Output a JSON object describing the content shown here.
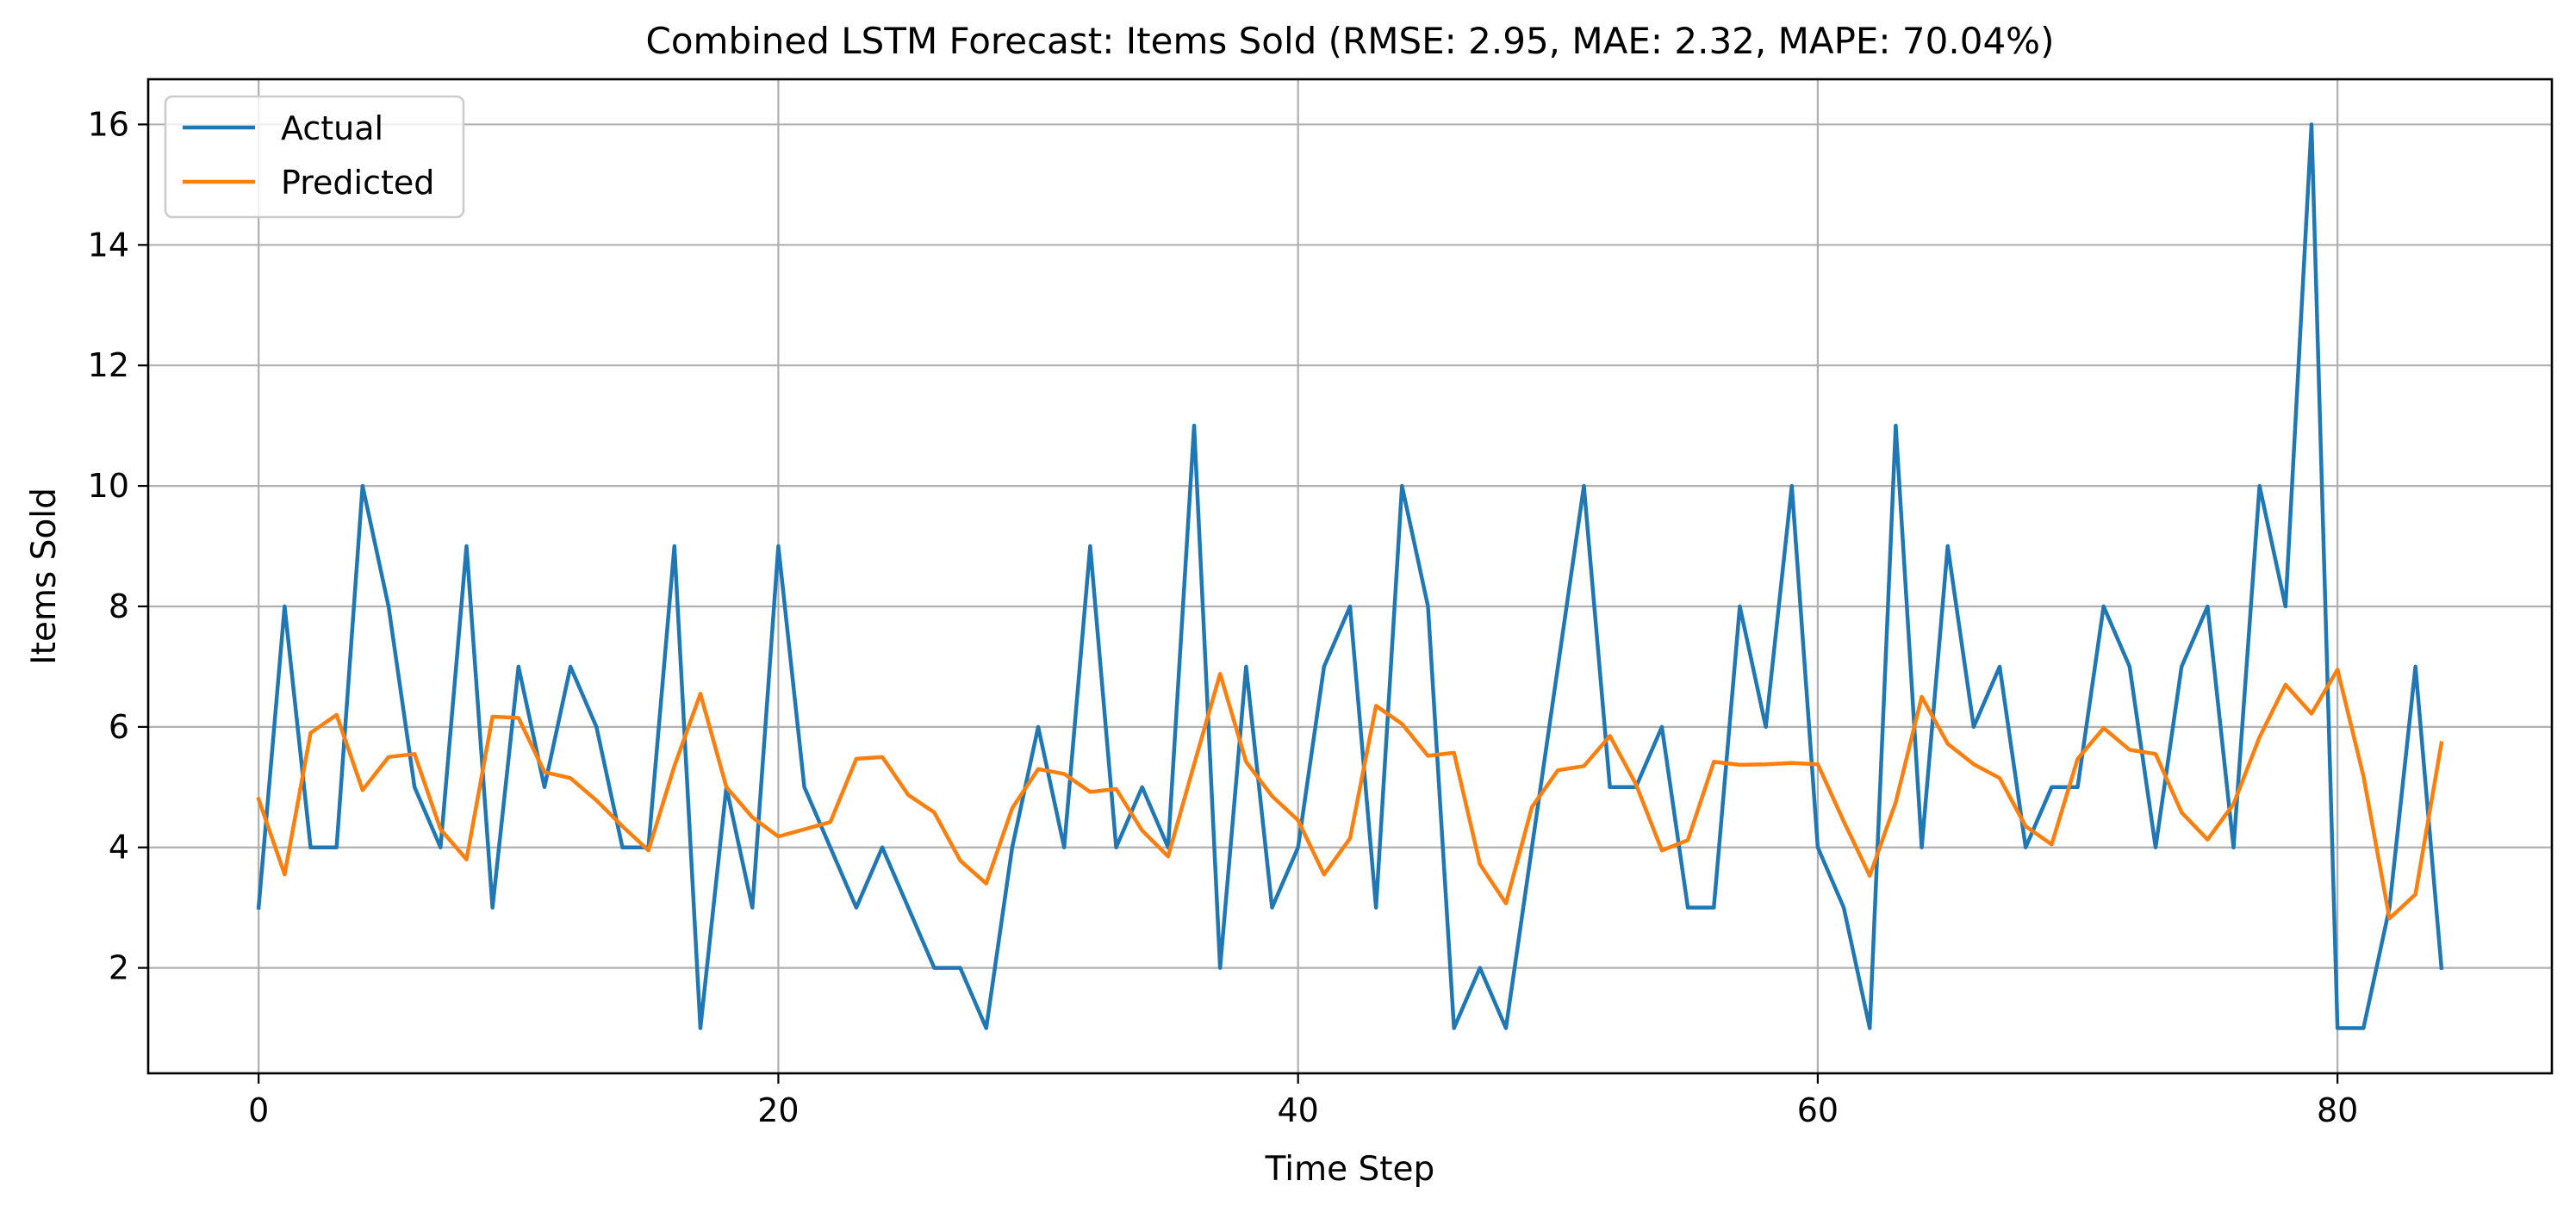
{
  "chart_data": {
    "type": "line",
    "title": "Combined LSTM Forecast: Items Sold (RMSE: 2.95, MAE: 2.32, MAPE: 70.04%)",
    "xlabel": "Time Step",
    "ylabel": "Items Sold",
    "xlim": [
      -4.25,
      88.25
    ],
    "ylim": [
      0.25,
      16.75
    ],
    "x_ticks": [
      0,
      20,
      40,
      60,
      80
    ],
    "y_ticks": [
      2,
      4,
      6,
      8,
      10,
      12,
      14,
      16
    ],
    "grid": true,
    "legend": "top-left",
    "series": [
      {
        "name": "Actual",
        "color": "#1f77b4",
        "values": [
          3,
          8,
          4,
          4,
          10,
          8,
          5,
          4,
          9,
          3,
          7,
          5,
          7,
          6,
          4,
          4,
          9,
          1,
          5,
          3,
          9,
          5,
          4,
          3,
          4,
          3,
          2,
          2,
          1,
          4,
          6,
          4,
          9,
          4,
          5,
          4,
          11,
          2,
          7,
          3,
          4,
          7,
          8,
          3,
          10,
          8,
          1,
          2,
          1,
          4,
          7,
          10,
          5,
          5,
          6,
          3,
          3,
          8,
          6,
          10,
          4,
          3,
          1,
          11,
          4,
          9,
          6,
          7,
          4,
          5,
          5,
          8,
          7,
          4,
          7,
          8,
          4,
          10,
          8,
          16,
          1,
          1,
          3,
          7,
          2
        ]
      },
      {
        "name": "Predicted",
        "color": "#ff7f0e",
        "values": [
          4.8,
          3.55,
          5.9,
          6.2,
          4.95,
          5.5,
          5.55,
          4.3,
          3.8,
          6.17,
          6.15,
          5.25,
          5.15,
          4.78,
          4.35,
          3.95,
          5.35,
          6.55,
          5.0,
          4.5,
          4.18,
          4.3,
          4.42,
          5.47,
          5.5,
          4.87,
          4.58,
          3.78,
          3.4,
          4.65,
          5.3,
          5.22,
          4.92,
          4.97,
          4.28,
          3.85,
          5.38,
          6.88,
          5.42,
          4.85,
          4.45,
          3.55,
          4.15,
          6.35,
          6.05,
          5.52,
          5.57,
          3.72,
          3.07,
          4.67,
          5.28,
          5.35,
          5.85,
          5.05,
          3.95,
          4.12,
          5.42,
          5.37,
          5.38,
          5.4,
          5.38,
          4.43,
          3.53,
          4.75,
          6.5,
          5.72,
          5.38,
          5.15,
          4.35,
          4.05,
          5.47,
          5.98,
          5.62,
          5.55,
          4.58,
          4.13,
          4.72,
          5.83,
          6.7,
          6.22,
          6.95,
          5.18,
          2.82,
          3.22,
          5.73
        ]
      }
    ]
  }
}
